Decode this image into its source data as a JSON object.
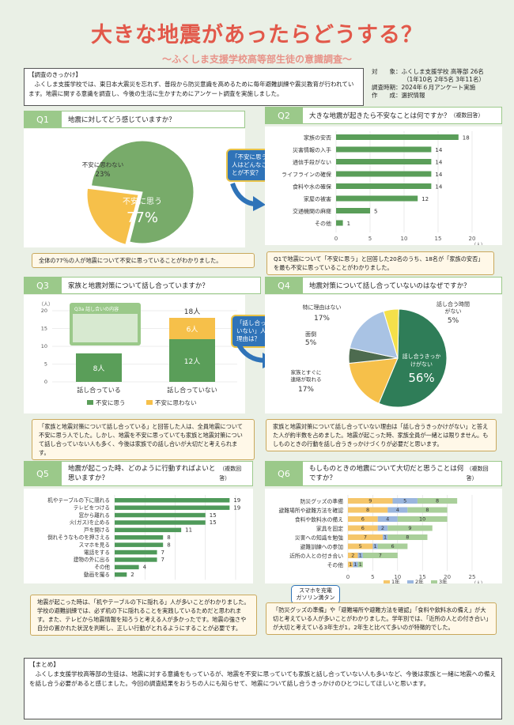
{
  "title": "大きな地震があったらどうする？",
  "subtitle": "～ふくしま支援学校高等部生徒の意識調査～",
  "intro": {
    "heading": "【調査のきっかけ】",
    "body": "ふくしま支援学校では、東日本大震災を忘れず、普段から防災意識を高めるために毎年避難訓練や震災教育が行われています。地震に関する意識を調査し、今後の生活に生かすためにアンケート調査を実施しました。"
  },
  "meta": {
    "line1": "対　　象：ふくしま支援学校 高等部 26名",
    "line2": "（1年10名 2年5名 3年11名）",
    "line3": "調査時期：2024年６月アンケート実施",
    "line4": "作　　成：選択情報"
  },
  "q1": {
    "tag": "Q1",
    "question": "地震に対してどう感じていますか？",
    "note": "全体の77％の人が地震について不安に思っていることがわかりました。"
  },
  "q2": {
    "tag": "Q2",
    "question": "大きな地震が起きたら不安なことは何ですか？",
    "question_sub": "（複数回答）",
    "note": "Q1で地震について「不安に思う」と回答した20名のうち、18名が「家族の安否」を最も不安に思っていることがわかりました。"
  },
  "bubble1": "「不安に思う」人はどんなことが不安？",
  "q3": {
    "tag": "Q3",
    "question": "家族と地震対策について話し合っていますか？",
    "inset_title": "Q3a 話し合いの内容",
    "note": "「家族と地震対策について話し合っている」と回答した人は、全員地震について不安に思う人でした。しかし、地震を不安に思っていても家族と地震対策について話し合っていない人も多く、今後は家族での話し合いが大切だと考えられます。"
  },
  "bubble2": "「話し合っていない」人の理由は？",
  "q4": {
    "tag": "Q4",
    "question": "地震対策について話し合っていないのはなぜですか？",
    "note": "家族と地震対策について話し合っていない理由は「話し合うきっかけがない」と答えた人が約半数を占めました。地震が起こった時、家族全員が一緒とは限りません。もしものときの行動を話し合うきっかけづくりが必要だと思います。"
  },
  "q5": {
    "tag": "Q5",
    "question": "地震が起こった時、どのように行動すればよいと思いますか？",
    "question_sub": "（複数回答）",
    "note": "地震が起こった時は、「机やテーブルの下に隠れる」人が多いことがわかりました。学校の避難訓練では、必ず机の下に隠れることを実践しているためだと思われます。また、テレビから地震情報を知ろうと考える人が多かったです。地震の強さや自分の置かれた状況を判断し、正しい行動がとれるようにすることが必要です。"
  },
  "q6": {
    "tag": "Q6",
    "question": "もしものときの地震について大切だと思うことは何ですか？",
    "question_sub": "（複数回答）",
    "callout": "スマホを充電\nガソリン満タン",
    "note": "「防災グッズの準備」や「避難場所や避難方法を確認」「食料や飲料水の備え」が大切と考えている人が多いことがわかりました。学年別では、「近所の人との付き合い」が大切と考えている3年生が1，2年生と比べて多いのが特徴的でした。"
  },
  "summary": {
    "heading": "【まとめ】",
    "body": "ふくしま支援学校高等部の生徒は、地震に対する意識をもっているが、地震を不安に思っていても家族と話し合っていない人も多いなど、今後は家族と一緒に地震への備えを話し合う必要があると感じました。今回の調査結果をおうちの人にも知らせて、地震について話し合うきっかけのひとつにしてほしいと思います。"
  },
  "chart_data": [
    {
      "id": "q1",
      "type": "pie",
      "slices": [
        {
          "label": "不安に思う",
          "value": 77,
          "display": "77%",
          "color": "#78ab6a"
        },
        {
          "label": "不安に思わない",
          "value": 23,
          "display": "23%",
          "color": "#f6c04a"
        }
      ]
    },
    {
      "id": "q2",
      "type": "bar",
      "orientation": "horizontal",
      "categories": [
        "家族の安否",
        "災害情報の入手",
        "通信手段がない",
        "ライフラインの確保",
        "食料や水の確保",
        "家屋の被害",
        "交通機関の麻痺",
        "その他"
      ],
      "values": [
        18,
        14,
        14,
        14,
        14,
        12,
        5,
        1
      ],
      "xlim": [
        0,
        20
      ],
      "xticks": [
        "0",
        "5",
        "10",
        "15",
        "20"
      ],
      "unit": "（人）",
      "color": "#5a9e59"
    },
    {
      "id": "q3",
      "type": "bar",
      "stacked": true,
      "categories": [
        "話し合っている",
        "話し合っていない"
      ],
      "series": [
        {
          "name": "不安に思う",
          "values": [
            8,
            12
          ],
          "labels": [
            "8人",
            "12人"
          ],
          "color": "#5a9e59"
        },
        {
          "name": "不安に思わない",
          "values": [
            0,
            6
          ],
          "labels": [
            "",
            "6人"
          ],
          "color": "#f6c04a"
        }
      ],
      "totals": [
        "",
        "18人"
      ],
      "ylim": [
        0,
        20
      ],
      "yticks": [
        "0",
        "5",
        "10",
        "15",
        "20"
      ],
      "unit": "（人）"
    },
    {
      "id": "q4",
      "type": "pie",
      "slices": [
        {
          "label": "話し合うきっかけがない",
          "value": 56,
          "display": "56%",
          "color": "#2f7d58"
        },
        {
          "label": "家族とすぐに連絡が取れる",
          "value": 17,
          "display": "17%",
          "color": "#f6c04a"
        },
        {
          "label": "面倒",
          "value": 5,
          "display": "5%",
          "color": "#4d6b4f"
        },
        {
          "label": "特に理由はない",
          "value": 17,
          "display": "17%",
          "color": "#a9c3e4"
        },
        {
          "label": "話し合う時間がない",
          "value": 5,
          "display": "5%",
          "color": "#f4e04a"
        }
      ]
    },
    {
      "id": "q5",
      "type": "bar",
      "orientation": "horizontal",
      "categories": [
        "机やテーブルの下に隠れる",
        "テレビをつける",
        "窓から離れる",
        "火(ガス)を止める",
        "戸を開ける",
        "倒れそうなものを押さえる",
        "スマホを見る",
        "電話をする",
        "建物の外に出る",
        "その他",
        "動画を撮る"
      ],
      "values": [
        19,
        19,
        15,
        15,
        11,
        8,
        8,
        7,
        7,
        4,
        2
      ],
      "xlim": [
        0,
        20
      ],
      "xticks": [
        "0",
        "5",
        "10",
        "15",
        "20"
      ],
      "unit": "（人）",
      "color": "#4f9a5a"
    },
    {
      "id": "q6",
      "type": "bar",
      "orientation": "horizontal",
      "stacked": true,
      "categories": [
        "防災グッズの準備",
        "避難場所や避難方法を確認",
        "食料や飲料水の備え",
        "家具を固定",
        "災害への知識を勉強",
        "避難訓練への参加",
        "近所の人との付き合い",
        "その他"
      ],
      "series": [
        {
          "name": "1年",
          "values": [
            9,
            8,
            6,
            6,
            7,
            5,
            2,
            1
          ],
          "color": "#f5c66a"
        },
        {
          "name": "2年",
          "values": [
            5,
            4,
            4,
            2,
            1,
            1,
            1,
            1
          ],
          "color": "#9ab6de"
        },
        {
          "name": "3年",
          "values": [
            8,
            8,
            10,
            9,
            8,
            6,
            7,
            1
          ],
          "color": "#a9cf9a"
        }
      ],
      "xlim": [
        0,
        25
      ],
      "xticks": [
        "0",
        "5",
        "10",
        "15",
        "20",
        "25"
      ],
      "unit": "（人）"
    }
  ]
}
